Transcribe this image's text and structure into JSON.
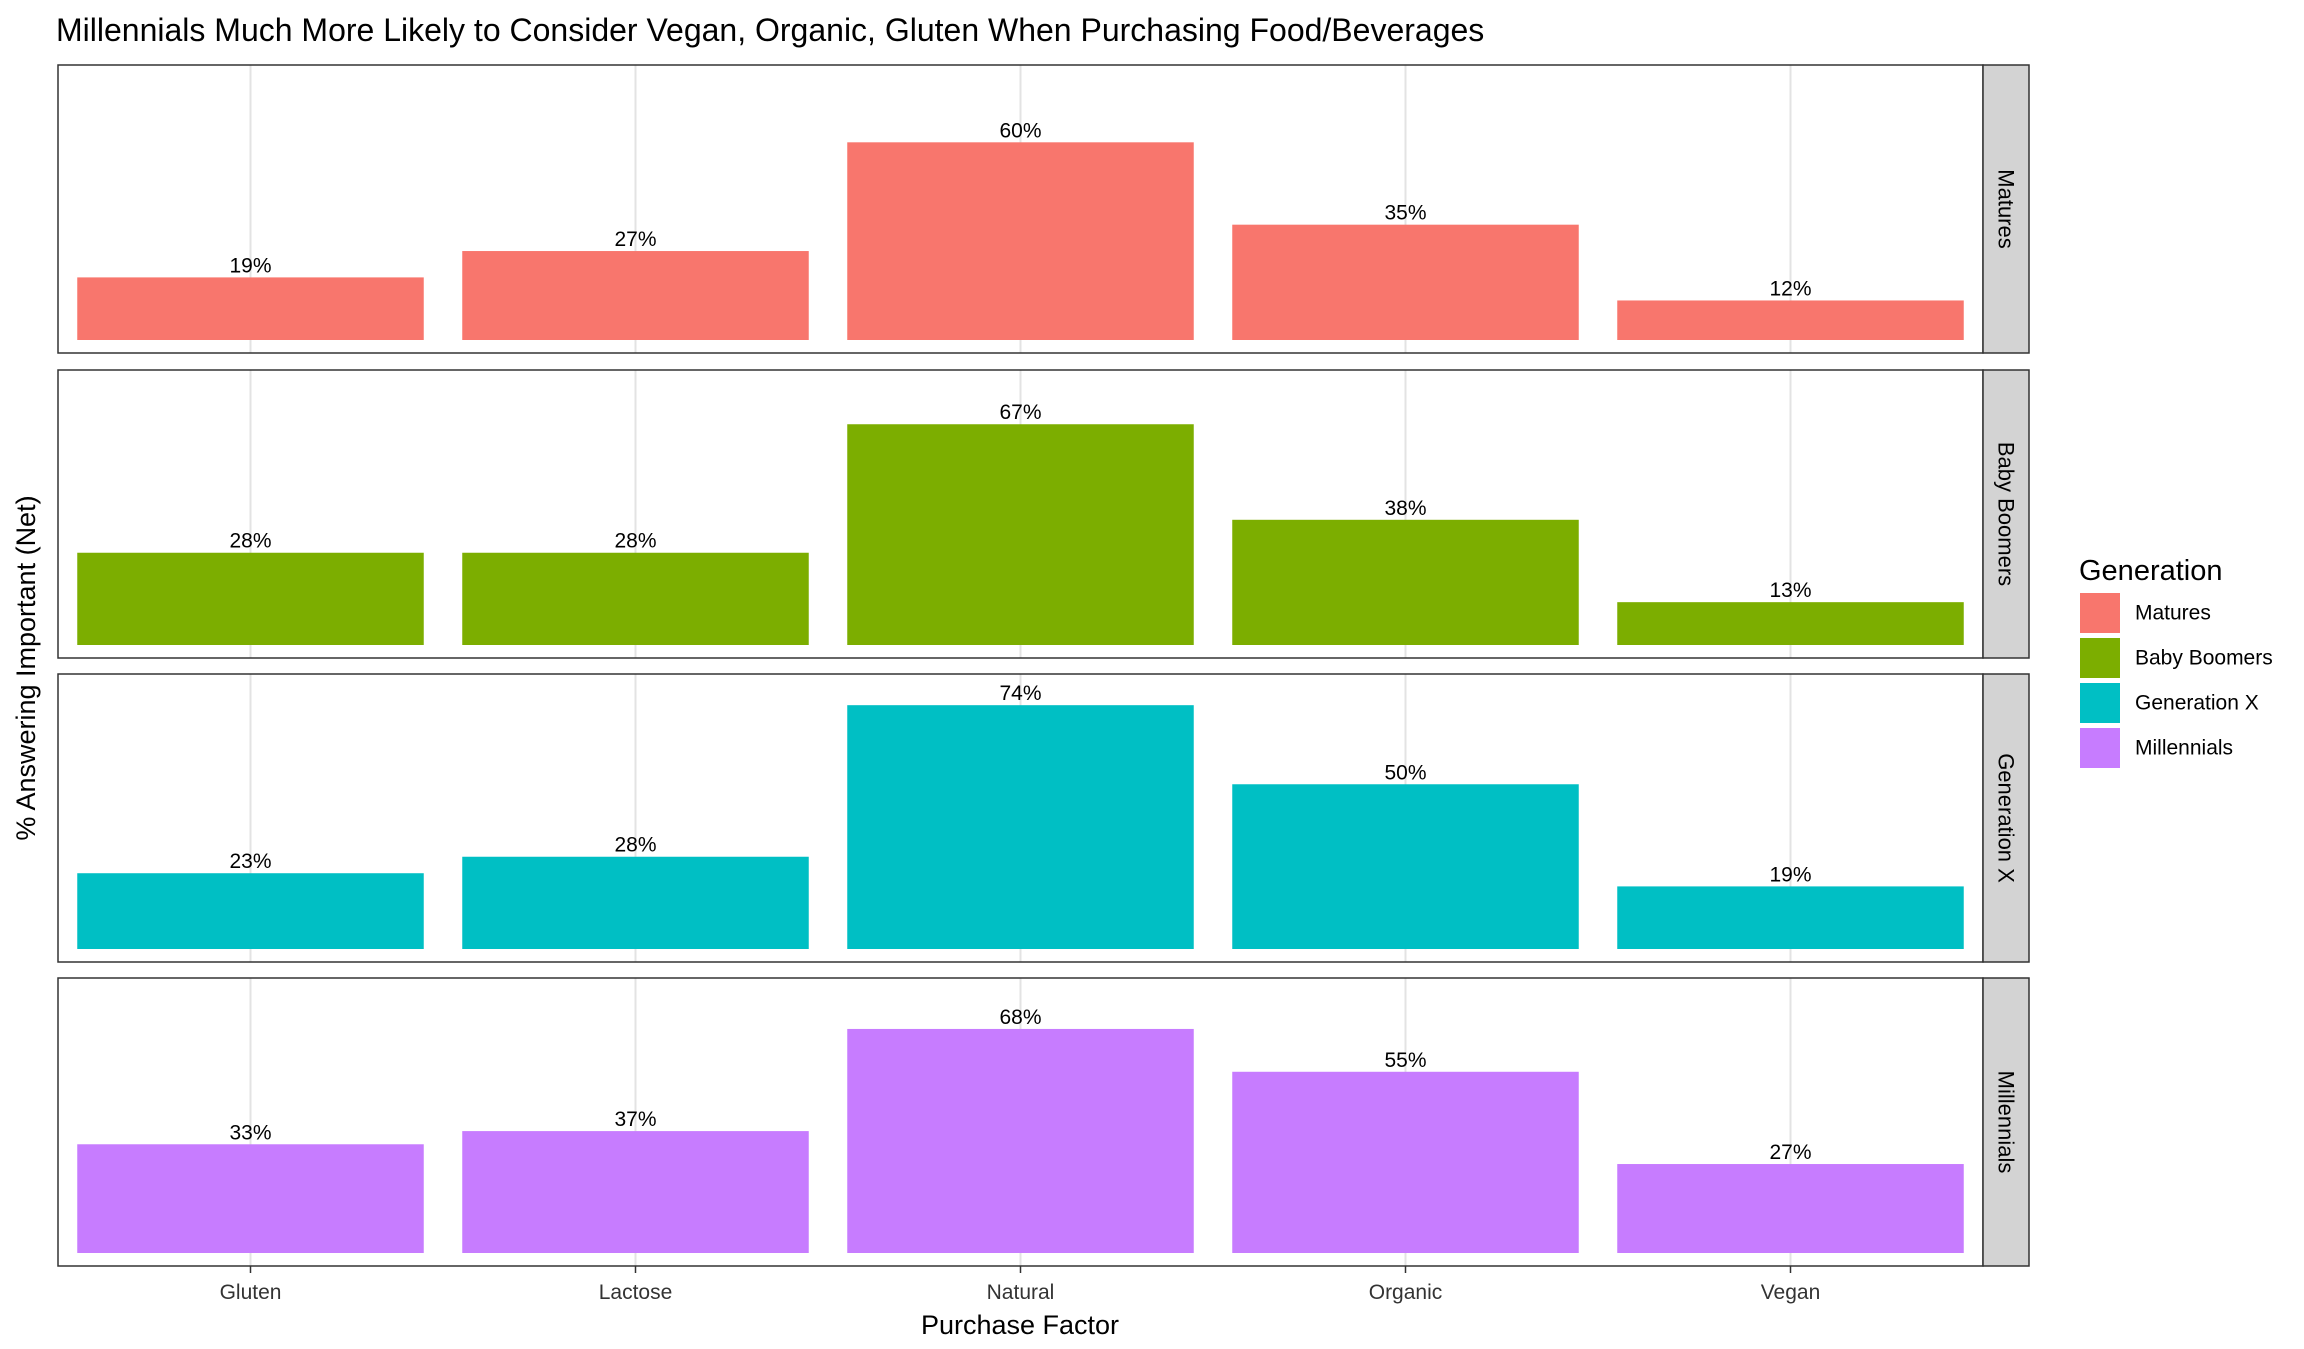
{
  "chart_data": {
    "type": "bar",
    "title": "Millennials Much More Likely to Consider Vegan, Organic, Gluten When Purchasing Food/Beverages",
    "xlabel": "Purchase Factor",
    "ylabel": "% Answering Important (Net)",
    "categories": [
      "Gluten",
      "Lactose",
      "Natural",
      "Organic",
      "Vegan"
    ],
    "ylim": [
      0,
      78
    ],
    "grid": true,
    "facets": "rows",
    "legend": {
      "title": "Generation",
      "placement": "right"
    },
    "series": [
      {
        "name": "Matures",
        "color": "#F8766D",
        "values": [
          19,
          27,
          60,
          35,
          12
        ],
        "labels": [
          "19%",
          "27%",
          "60%",
          "35%",
          "12%"
        ]
      },
      {
        "name": "Baby Boomers",
        "color": "#7CAE00",
        "values": [
          28,
          28,
          67,
          38,
          13
        ],
        "labels": [
          "28%",
          "28%",
          "67%",
          "38%",
          "13%"
        ]
      },
      {
        "name": "Generation X",
        "color": "#00BFC4",
        "values": [
          23,
          28,
          74,
          50,
          19
        ],
        "labels": [
          "23%",
          "28%",
          "74%",
          "50%",
          "19%"
        ]
      },
      {
        "name": "Millennials",
        "color": "#C77CFF",
        "values": [
          33,
          37,
          68,
          55,
          27
        ],
        "labels": [
          "33%",
          "37%",
          "68%",
          "55%",
          "27%"
        ]
      }
    ]
  }
}
